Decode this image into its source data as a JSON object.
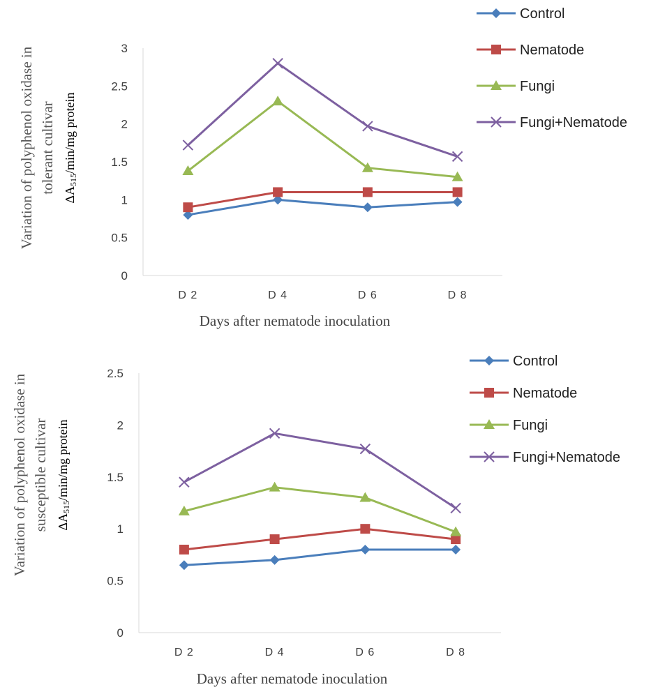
{
  "chart_data": [
    {
      "type": "line",
      "categories": [
        "D 2",
        "D 4",
        "D 6",
        "D 8"
      ],
      "series": [
        {
          "name": "Control",
          "values": [
            0.8,
            1.0,
            0.9,
            0.97
          ],
          "color": "#4a7ebb",
          "marker": "diamond"
        },
        {
          "name": "Nematode",
          "values": [
            0.9,
            1.1,
            1.1,
            1.1
          ],
          "color": "#be4b48",
          "marker": "square"
        },
        {
          "name": "Fungi",
          "values": [
            1.38,
            2.3,
            1.42,
            1.3
          ],
          "color": "#98b954",
          "marker": "triangle"
        },
        {
          "name": "Fungi+Nematode",
          "values": [
            1.72,
            2.8,
            1.97,
            1.57
          ],
          "color": "#7d60a0",
          "marker": "x"
        }
      ],
      "ylim": [
        0,
        3
      ],
      "yticks": [
        "0",
        "0.5",
        "1",
        "1.5",
        "2",
        "2.5",
        "3"
      ],
      "ylabel_line1": "Variation of polyphenol oxidase in",
      "ylabel_line2": "tolerant cultivar",
      "ylabel_unit_prefix": "ΔA",
      "ylabel_unit_sub": "515",
      "ylabel_unit_suffix": "/min/mg protein",
      "xlabel": "Days after nematode inoculation",
      "legend_position": "top-right",
      "grid": false
    },
    {
      "type": "line",
      "categories": [
        "D 2",
        "D 4",
        "D 6",
        "D 8"
      ],
      "series": [
        {
          "name": "Control",
          "values": [
            0.65,
            0.7,
            0.8,
            0.8
          ],
          "color": "#4a7ebb",
          "marker": "diamond"
        },
        {
          "name": "Nematode",
          "values": [
            0.8,
            0.9,
            1.0,
            0.9
          ],
          "color": "#be4b48",
          "marker": "square"
        },
        {
          "name": "Fungi",
          "values": [
            1.17,
            1.4,
            1.3,
            0.97
          ],
          "color": "#98b954",
          "marker": "triangle"
        },
        {
          "name": "Fungi+Nematode",
          "values": [
            1.45,
            1.92,
            1.77,
            1.2
          ],
          "color": "#7d60a0",
          "marker": "x"
        }
      ],
      "ylim": [
        0,
        2.5
      ],
      "yticks": [
        "0",
        "0.5",
        "1",
        "1.5",
        "2",
        "2.5"
      ],
      "ylabel_line1": "Variation of polyphenol oxidase in",
      "ylabel_line2": "susceptible cultivar",
      "ylabel_unit_prefix": "ΔA",
      "ylabel_unit_sub": "515",
      "ylabel_unit_suffix": "/min/mg protein",
      "xlabel": "Days after nematode inoculation",
      "legend_position": "top-right",
      "grid": false
    }
  ]
}
